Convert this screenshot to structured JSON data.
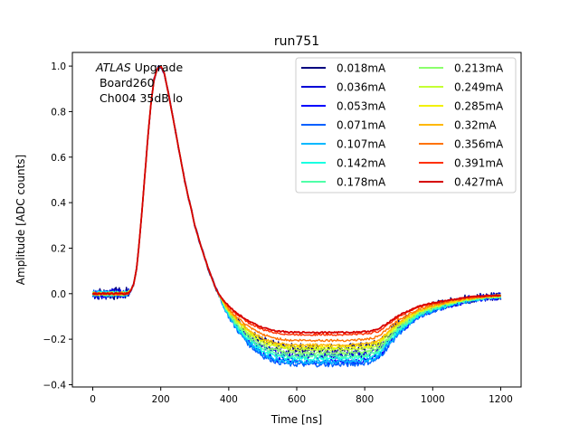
{
  "chart_data": {
    "type": "line",
    "title": "run751",
    "xlabel": "Time [ns]",
    "ylabel": "Amplitude [ADC counts]",
    "xlim": [
      -60,
      1260
    ],
    "ylim": [
      -0.41,
      1.06
    ],
    "xticks": [
      0,
      200,
      400,
      600,
      800,
      1000,
      1200
    ],
    "yticks": [
      -0.4,
      -0.2,
      0.0,
      0.2,
      0.4,
      0.6,
      0.8,
      1.0
    ],
    "xtick_labels": [
      "0",
      "200",
      "400",
      "600",
      "800",
      "1000",
      "1200"
    ],
    "ytick_labels": [
      "−0.4",
      "−0.2",
      "0.0",
      "0.2",
      "0.4",
      "0.6",
      "0.8",
      "1.0"
    ],
    "grid": false,
    "legend_placement": "top-right",
    "legend_columns": 2,
    "annotations": {
      "experiment": "ATLAS",
      "experiment_suffix": " Upgrade",
      "board": " Board260",
      "channel": " Ch004 35dB lo"
    },
    "waveform_shape": {
      "x": [
        0,
        100,
        110,
        120,
        130,
        140,
        150,
        160,
        170,
        180,
        190,
        200,
        210,
        220,
        230,
        240,
        250,
        260,
        270,
        280,
        290,
        300,
        320,
        340,
        360,
        380,
        400,
        420,
        440,
        460,
        480,
        500,
        520,
        540,
        560,
        580,
        600,
        650,
        700,
        750,
        800,
        820,
        840,
        860,
        880,
        900,
        920,
        940,
        960,
        980,
        1000,
        1050,
        1100,
        1150,
        1200
      ],
      "y_base": [
        0.0,
        0.0,
        0.01,
        0.04,
        0.12,
        0.28,
        0.46,
        0.65,
        0.82,
        0.94,
        0.99,
        1.0,
        0.97,
        0.9,
        0.82,
        0.74,
        0.66,
        0.58,
        0.5,
        0.43,
        0.37,
        0.3,
        0.2,
        0.11,
        0.03,
        -0.03,
        -0.08,
        -0.12,
        -0.15,
        -0.18,
        -0.2,
        -0.22,
        -0.23,
        -0.24,
        -0.245,
        -0.25,
        -0.25,
        -0.25,
        -0.25,
        -0.25,
        -0.245,
        -0.24,
        -0.23,
        -0.2,
        -0.17,
        -0.14,
        -0.12,
        -0.1,
        -0.08,
        -0.07,
        -0.06,
        -0.04,
        -0.025,
        -0.015,
        -0.01
      ]
    },
    "series": [
      {
        "name": "0.018mA",
        "color": "#00007f",
        "undershoot": -0.24,
        "noise": 0.022
      },
      {
        "name": "0.036mA",
        "color": "#0000d6",
        "undershoot": -0.27,
        "noise": 0.018
      },
      {
        "name": "0.053mA",
        "color": "#0000ff",
        "undershoot": -0.3,
        "noise": 0.014
      },
      {
        "name": "0.071mA",
        "color": "#0060ff",
        "undershoot": -0.31,
        "noise": 0.012
      },
      {
        "name": "0.107mA",
        "color": "#00b8ff",
        "undershoot": -0.3,
        "noise": 0.01
      },
      {
        "name": "0.142mA",
        "color": "#18ffe2",
        "undershoot": -0.285,
        "noise": 0.009
      },
      {
        "name": "0.178mA",
        "color": "#4fffa8",
        "undershoot": -0.275,
        "noise": 0.008
      },
      {
        "name": "0.213mA",
        "color": "#8bff6c",
        "undershoot": -0.26,
        "noise": 0.007
      },
      {
        "name": "0.249mA",
        "color": "#c4ff33",
        "undershoot": -0.245,
        "noise": 0.006
      },
      {
        "name": "0.285mA",
        "color": "#f2f100",
        "undershoot": -0.235,
        "noise": 0.006
      },
      {
        "name": "0.32mA",
        "color": "#ffb800",
        "undershoot": -0.225,
        "noise": 0.005
      },
      {
        "name": "0.356mA",
        "color": "#ff7300",
        "undershoot": -0.205,
        "noise": 0.005
      },
      {
        "name": "0.391mA",
        "color": "#ff3000",
        "undershoot": -0.18,
        "noise": 0.004
      },
      {
        "name": "0.427mA",
        "color": "#d60000",
        "undershoot": -0.17,
        "noise": 0.003
      }
    ]
  }
}
